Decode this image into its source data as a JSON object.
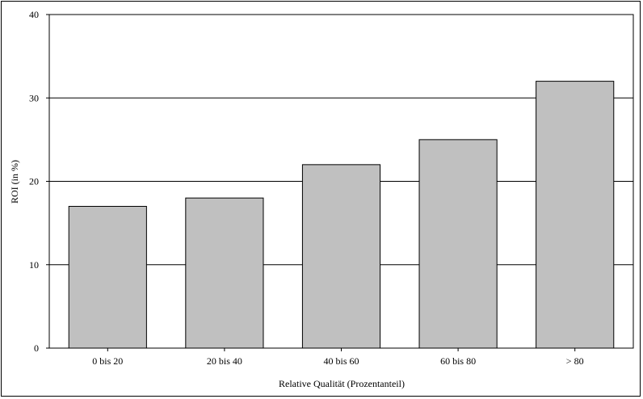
{
  "chart_data": {
    "type": "bar",
    "title": "",
    "xlabel": "Relative Qualität (Prozentanteil)",
    "ylabel": "ROI (in %)",
    "categories": [
      "0 bis 20",
      "20 bis 40",
      "40 bis 60",
      "60 bis 80",
      "> 80"
    ],
    "values": [
      17,
      18,
      22,
      25,
      32
    ],
    "ylim": [
      0,
      40
    ],
    "yticks": [
      0,
      10,
      20,
      30,
      40
    ],
    "grid": "horizontal",
    "legend": "none",
    "bar_color": "#c0c0c0",
    "bar_edge_color": "#000000",
    "grid_color": "#000000"
  }
}
